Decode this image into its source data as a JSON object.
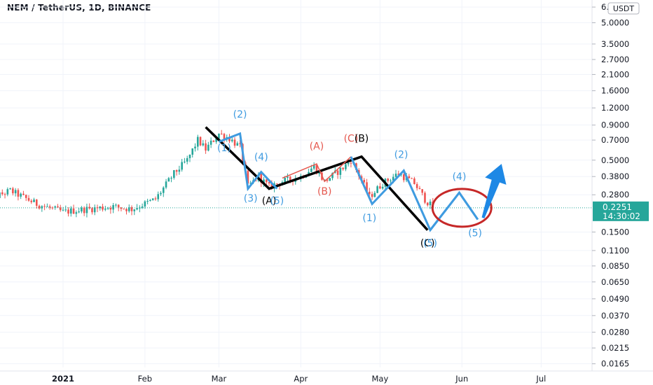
{
  "header": {
    "title": "NEM / TetherUS, 1D, BINANCE"
  },
  "currency_badge": "USDT",
  "last_price": {
    "price": "0.2251",
    "countdown": "14:30:02",
    "value": 0.2251
  },
  "colors": {
    "up": "#26a69a",
    "down": "#ef5350",
    "wave_blue": "#3f9be0",
    "wave_black": "#000000",
    "wave_red": "#e5584f",
    "circle": "#c62828",
    "arrow": "#1e88e5",
    "price_badge": "#26a69a"
  },
  "chart_data": {
    "type": "candlestick",
    "y_scale": "log",
    "ylim": [
      0.0155,
      6.9
    ],
    "price_ticks": [
      "6.5000",
      "5.0000",
      "3.5000",
      "2.7000",
      "2.1000",
      "1.6000",
      "1.2000",
      "0.9000",
      "0.7000",
      "0.5000",
      "0.3800",
      "0.2800",
      "0.1500",
      "0.1100",
      "0.0850",
      "0.0650",
      "0.0490",
      "0.0370",
      "0.0280",
      "0.0215",
      "0.0165"
    ],
    "date_ticks": [
      {
        "label": "2021",
        "date": "2021-01-01",
        "bold": true
      },
      {
        "label": "Feb",
        "date": "2021-02-01",
        "bold": false
      },
      {
        "label": "Mar",
        "date": "2021-03-01",
        "bold": false
      },
      {
        "label": "Apr",
        "date": "2021-04-01",
        "bold": false
      },
      {
        "label": "May",
        "date": "2021-05-01",
        "bold": false
      },
      {
        "label": "Jun",
        "date": "2021-06-01",
        "bold": false
      },
      {
        "label": "Jul",
        "date": "2021-07-01",
        "bold": false
      }
    ],
    "price_anchors": [
      [
        "2020-12-02",
        0.25
      ],
      [
        "2020-12-12",
        0.3
      ],
      [
        "2020-12-22",
        0.24
      ],
      [
        "2021-01-01",
        0.21
      ],
      [
        "2021-01-10",
        0.22
      ],
      [
        "2021-01-20",
        0.23
      ],
      [
        "2021-01-27",
        0.22
      ],
      [
        "2021-02-05",
        0.26
      ],
      [
        "2021-02-12",
        0.4
      ],
      [
        "2021-02-17",
        0.5
      ],
      [
        "2021-02-21",
        0.7
      ],
      [
        "2021-02-24",
        0.6
      ],
      [
        "2021-03-01",
        0.78
      ],
      [
        "2021-03-05",
        0.72
      ],
      [
        "2021-03-09",
        0.62
      ],
      [
        "2021-03-12",
        0.32
      ],
      [
        "2021-03-16",
        0.38
      ],
      [
        "2021-03-20",
        0.32
      ],
      [
        "2021-03-25",
        0.35
      ],
      [
        "2021-04-01",
        0.38
      ],
      [
        "2021-04-06",
        0.45
      ],
      [
        "2021-04-10",
        0.35
      ],
      [
        "2021-04-17",
        0.44
      ],
      [
        "2021-04-20",
        0.5
      ],
      [
        "2021-04-24",
        0.36
      ],
      [
        "2021-04-27",
        0.27
      ],
      [
        "2021-05-02",
        0.34
      ],
      [
        "2021-05-08",
        0.4
      ],
      [
        "2021-05-14",
        0.34
      ],
      [
        "2021-05-18",
        0.26
      ],
      [
        "2021-05-21",
        0.2251
      ]
    ],
    "wave_lines": [
      {
        "name": "black-abc",
        "color": "#000000",
        "width": 3.5,
        "points": [
          [
            "2021-02-24",
            0.87
          ],
          [
            "2021-03-20",
            0.31
          ],
          [
            "2021-04-24",
            0.53
          ],
          [
            "2021-05-19",
            0.155
          ]
        ]
      },
      {
        "name": "blue-impulse-1",
        "color": "#3f9be0",
        "width": 3,
        "points": [
          [
            "2021-03-01",
            0.68
          ],
          [
            "2021-03-09",
            0.78
          ],
          [
            "2021-03-12",
            0.31
          ],
          [
            "2021-03-17",
            0.41
          ],
          [
            "2021-03-23",
            0.31
          ]
        ]
      },
      {
        "name": "red-abc",
        "color": "#e5584f",
        "width": 1.5,
        "points": [
          [
            "2021-03-25",
            0.37
          ],
          [
            "2021-04-07",
            0.47
          ],
          [
            "2021-04-10",
            0.35
          ],
          [
            "2021-04-20",
            0.53
          ]
        ]
      },
      {
        "name": "blue-impulse-2",
        "color": "#3f9be0",
        "width": 3,
        "points": [
          [
            "2021-04-20",
            0.53
          ],
          [
            "2021-04-28",
            0.24
          ],
          [
            "2021-05-10",
            0.42
          ],
          [
            "2021-05-20",
            0.155
          ],
          [
            "2021-05-31",
            0.29
          ],
          [
            "2021-06-07",
            0.185
          ]
        ]
      },
      {
        "name": "blue-projection",
        "color": "#3f9be0",
        "width": 3,
        "points": [
          [
            "2021-05-20",
            0.155
          ],
          [
            "2021-05-31",
            0.29
          ],
          [
            "2021-06-07",
            0.185
          ]
        ]
      }
    ],
    "annotations": [
      {
        "text": "(2)",
        "color": "#3f9be0",
        "at": [
          "2021-03-09",
          1.02
        ]
      },
      {
        "text": "(1)",
        "color": "#3f9be0",
        "at": [
          "2021-03-03",
          0.58
        ]
      },
      {
        "text": "(4)",
        "color": "#3f9be0",
        "at": [
          "2021-03-17",
          0.5
        ]
      },
      {
        "text": "(3)",
        "color": "#3f9be0",
        "at": [
          "2021-03-13",
          0.25
        ]
      },
      {
        "text": "(A)",
        "color": "#000000",
        "at": [
          "2021-03-20",
          0.24
        ]
      },
      {
        "text": "(5)",
        "color": "#3f9be0",
        "at": [
          "2021-03-23",
          0.24
        ]
      },
      {
        "text": "(A)",
        "color": "#e5584f",
        "at": [
          "2021-04-07",
          0.6
        ]
      },
      {
        "text": "(B)",
        "color": "#e5584f",
        "at": [
          "2021-04-10",
          0.28
        ]
      },
      {
        "text": "(C)",
        "color": "#e5584f",
        "at": [
          "2021-04-20",
          0.68
        ]
      },
      {
        "text": "(B)",
        "color": "#000000",
        "at": [
          "2021-04-24",
          0.68
        ]
      },
      {
        "text": "(2)",
        "color": "#3f9be0",
        "at": [
          "2021-05-09",
          0.52
        ]
      },
      {
        "text": "(1)",
        "color": "#3f9be0",
        "at": [
          "2021-04-27",
          0.18
        ]
      },
      {
        "text": "(4)",
        "color": "#3f9be0",
        "at": [
          "2021-05-31",
          0.36
        ]
      },
      {
        "text": "(C)",
        "color": "#000000",
        "at": [
          "2021-05-19",
          0.118
        ]
      },
      {
        "text": "(5)",
        "color": "#3f9be0",
        "at": [
          "2021-05-20",
          0.118
        ]
      },
      {
        "text": "(5)",
        "color": "#3f9be0",
        "at": [
          "2021-06-06",
          0.14
        ]
      }
    ],
    "circle": {
      "center": [
        "2021-06-01",
        0.225
      ],
      "color": "#c62828"
    },
    "arrow": {
      "from": [
        "2021-06-09",
        0.19
      ],
      "to": [
        "2021-06-16",
        0.47
      ],
      "color": "#1e88e5"
    }
  }
}
